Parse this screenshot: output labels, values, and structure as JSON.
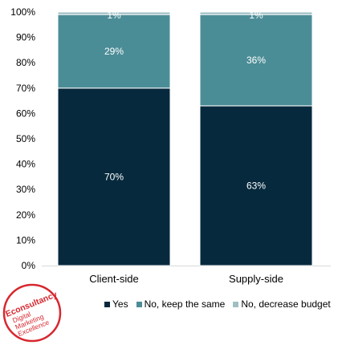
{
  "chart_data": {
    "type": "bar",
    "stacked": true,
    "categories": [
      "Client-side",
      "Supply-side"
    ],
    "series": [
      {
        "name": "Yes",
        "values": [
          70,
          63
        ],
        "color": "#06293d"
      },
      {
        "name": "No, keep the same",
        "values": [
          29,
          36
        ],
        "color": "#4b8d96"
      },
      {
        "name": "No, decrease budget",
        "values": [
          1,
          1
        ],
        "color": "#9fbfc4"
      }
    ],
    "data_labels": [
      [
        "70%",
        "63%"
      ],
      [
        "29%",
        "36%"
      ],
      [
        "1%",
        "1%"
      ]
    ],
    "y_ticks": [
      "0%",
      "10%",
      "20%",
      "30%",
      "40%",
      "50%",
      "60%",
      "70%",
      "80%",
      "90%",
      "100%"
    ],
    "ylim": [
      0,
      100
    ],
    "title": "",
    "xlabel": "",
    "ylabel": "",
    "grid": false,
    "legend_position": "bottom"
  },
  "logo": {
    "brand": "Econsultancy",
    "tagline": [
      "Digital",
      "Marketing",
      "Excellence"
    ],
    "color": "#d7282f"
  }
}
